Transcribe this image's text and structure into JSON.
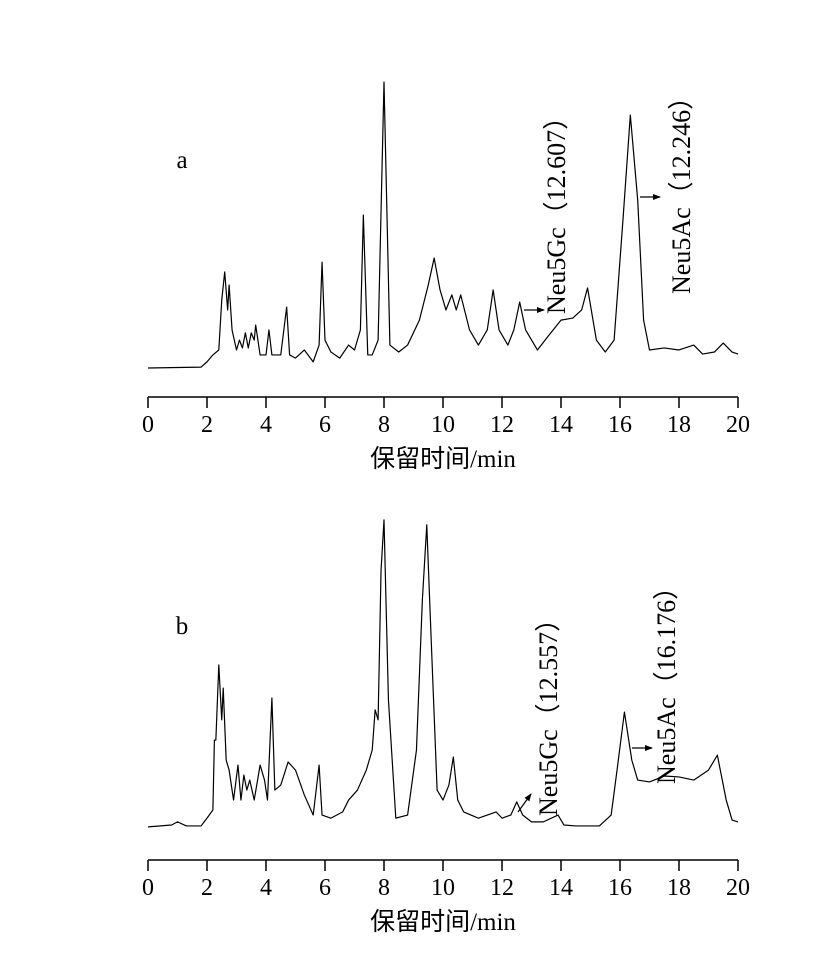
{
  "chart_data": [
    {
      "type": "line",
      "label": "a",
      "xlabel": "保留时间/min",
      "xlim": [
        0,
        20
      ],
      "xticks": [
        0,
        2,
        4,
        6,
        8,
        10,
        12,
        14,
        16,
        18,
        20
      ],
      "ylim": [
        0,
        100
      ],
      "color": "#000000",
      "annotations": [
        {
          "text": "Neu5Gc（12.607）"
        },
        {
          "text": "Neu5Ac（12.246）"
        }
      ],
      "x": [
        0,
        1.8,
        2.0,
        2.2,
        2.4,
        2.5,
        2.6,
        2.7,
        2.75,
        2.85,
        3.0,
        3.1,
        3.2,
        3.3,
        3.4,
        3.5,
        3.6,
        3.65,
        3.8,
        4.0,
        4.1,
        4.2,
        4.5,
        4.7,
        4.8,
        5.0,
        5.3,
        5.6,
        5.8,
        5.9,
        6.0,
        6.2,
        6.5,
        6.8,
        7.0,
        7.2,
        7.3,
        7.45,
        7.6,
        7.8,
        8.0,
        8.2,
        8.5,
        8.8,
        9.2,
        9.5,
        9.7,
        9.9,
        10.1,
        10.3,
        10.45,
        10.6,
        10.9,
        11.2,
        11.5,
        11.7,
        11.9,
        12.2,
        12.4,
        12.6,
        12.8,
        13.2,
        13.6,
        14.0,
        14.4,
        14.7,
        14.9,
        15.2,
        15.5,
        15.8,
        16.1,
        16.35,
        16.6,
        16.8,
        17.0,
        17.5,
        18.0,
        18.5,
        18.8,
        19.2,
        19.5,
        19.8,
        20.0
      ],
      "values": [
        0.7,
        1.0,
        2.8,
        5.2,
        6.9,
        24.1,
        33.8,
        20.7,
        29.3,
        13.8,
        6.9,
        10.3,
        7.6,
        12.8,
        7.6,
        12.8,
        10.3,
        15.5,
        5.2,
        5.2,
        13.8,
        5.2,
        5.2,
        21.7,
        5.2,
        4.1,
        6.9,
        2.8,
        8.6,
        37.2,
        10.3,
        6.2,
        4.1,
        8.6,
        6.9,
        13.8,
        53.4,
        5.2,
        5.2,
        10.3,
        99.3,
        8.6,
        6.2,
        8.6,
        17.2,
        29.3,
        38.6,
        27.6,
        20.7,
        25.9,
        20.7,
        25.9,
        13.8,
        8.6,
        13.8,
        27.6,
        13.8,
        8.6,
        13.8,
        23.4,
        13.8,
        6.9,
        12.1,
        17.2,
        17.9,
        20.7,
        28.3,
        10.3,
        6.2,
        10.3,
        51.7,
        87.9,
        58.6,
        17.2,
        6.9,
        7.6,
        6.9,
        8.6,
        5.5,
        6.2,
        9.3,
        6.2,
        5.5
      ]
    },
    {
      "type": "line",
      "label": "b",
      "xlabel": "保留时间/min",
      "xlim": [
        0,
        20
      ],
      "xticks": [
        0,
        2,
        4,
        6,
        8,
        10,
        12,
        14,
        16,
        18,
        20
      ],
      "ylim": [
        0,
        100
      ],
      "color": "#000000",
      "annotations": [
        {
          "text": "Neu5Gc（12.557）"
        },
        {
          "text": "Neu5Ac（16.176）"
        }
      ],
      "x": [
        0,
        0.8,
        1.0,
        1.3,
        1.8,
        2.0,
        2.2,
        2.25,
        2.3,
        2.4,
        2.5,
        2.55,
        2.65,
        2.75,
        2.9,
        3.05,
        3.15,
        3.25,
        3.35,
        3.45,
        3.6,
        3.8,
        3.95,
        4.05,
        4.2,
        4.3,
        4.5,
        4.75,
        5.0,
        5.3,
        5.6,
        5.8,
        5.9,
        6.2,
        6.6,
        6.8,
        7.1,
        7.4,
        7.6,
        7.7,
        7.8,
        7.9,
        8.0,
        8.15,
        8.4,
        8.8,
        9.1,
        9.3,
        9.45,
        9.6,
        9.8,
        10.0,
        10.2,
        10.35,
        10.5,
        10.7,
        11.2,
        11.8,
        12.0,
        12.3,
        12.5,
        12.7,
        13.0,
        13.4,
        13.9,
        14.1,
        14.5,
        15.3,
        15.7,
        15.9,
        16.15,
        16.4,
        16.6,
        17.0,
        17.5,
        18.0,
        18.5,
        19.0,
        19.3,
        19.6,
        19.8,
        20.0
      ],
      "values": [
        1.0,
        1.6,
        2.6,
        1.3,
        1.3,
        3.8,
        6.4,
        28.8,
        28.8,
        52.9,
        35.3,
        45.5,
        22.4,
        19.2,
        9.6,
        20.8,
        9.6,
        17.6,
        12.8,
        16.0,
        9.6,
        20.8,
        16.0,
        9.6,
        42.3,
        12.8,
        14.4,
        21.8,
        19.2,
        11.2,
        4.8,
        20.8,
        4.8,
        3.8,
        5.8,
        9.6,
        12.8,
        19.2,
        25.6,
        38.5,
        35.3,
        83.3,
        99.4,
        41.7,
        3.8,
        4.8,
        25.6,
        73.7,
        97.8,
        60.9,
        12.8,
        9.6,
        14.4,
        23.4,
        9.6,
        5.8,
        3.8,
        5.8,
        3.8,
        4.8,
        9.0,
        4.8,
        2.6,
        2.6,
        4.8,
        1.6,
        1.3,
        1.3,
        4.8,
        19.2,
        37.8,
        22.4,
        16.0,
        15.4,
        17.3,
        17.0,
        16.0,
        19.2,
        24.0,
        9.6,
        3.2,
        2.6
      ]
    }
  ]
}
